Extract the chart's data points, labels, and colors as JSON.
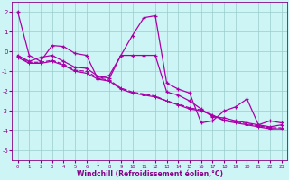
{
  "xlabel": "Windchill (Refroidissement éolien,°C)",
  "xlim": [
    -0.5,
    23.5
  ],
  "ylim": [
    -5.5,
    2.5
  ],
  "yticks": [
    -5,
    -4,
    -3,
    -2,
    -1,
    0,
    1,
    2
  ],
  "xticks": [
    0,
    1,
    2,
    3,
    4,
    5,
    6,
    7,
    8,
    9,
    10,
    11,
    12,
    13,
    14,
    15,
    16,
    17,
    18,
    19,
    20,
    21,
    22,
    23
  ],
  "bg_color": "#cef5f5",
  "line_color": "#aa00aa",
  "grid_color": "#99cccc",
  "line1_x": [
    0,
    1,
    2,
    3,
    4,
    5,
    6,
    7,
    8,
    9,
    10,
    11,
    12,
    13,
    14,
    15,
    16,
    17,
    18,
    19,
    20,
    21,
    22,
    23
  ],
  "line1_y": [
    2.0,
    -0.2,
    -0.5,
    0.3,
    0.25,
    -0.1,
    -0.2,
    -1.4,
    -1.2,
    -0.2,
    0.8,
    1.7,
    1.8,
    -1.6,
    -1.9,
    -2.1,
    -3.6,
    -3.5,
    -3.0,
    -2.8,
    -2.4,
    -3.7,
    -3.5,
    -3.6
  ],
  "line2_x": [
    0,
    1,
    2,
    3,
    4,
    5,
    6,
    7,
    8,
    9,
    10,
    11,
    12,
    13,
    14,
    15,
    16,
    17,
    18,
    19,
    20,
    21,
    22,
    23
  ],
  "line2_y": [
    -0.2,
    -0.5,
    -0.3,
    -0.2,
    -0.5,
    -0.8,
    -0.85,
    -1.25,
    -1.35,
    -0.2,
    -0.2,
    -0.2,
    -0.2,
    -2.05,
    -2.2,
    -2.5,
    -2.9,
    -3.3,
    -3.35,
    -3.5,
    -3.6,
    -3.7,
    -3.8,
    -3.7
  ],
  "line3_x": [
    0,
    1,
    2,
    3,
    4,
    5,
    6,
    7,
    8,
    9,
    10,
    11,
    12,
    13,
    14,
    15,
    16,
    17,
    18,
    19,
    20,
    21,
    22,
    23
  ],
  "line3_y": [
    -0.3,
    -0.6,
    -0.6,
    -0.5,
    -0.7,
    -1.0,
    -1.1,
    -1.4,
    -1.5,
    -1.9,
    -2.1,
    -2.2,
    -2.3,
    -2.5,
    -2.7,
    -2.9,
    -3.0,
    -3.2,
    -3.5,
    -3.6,
    -3.7,
    -3.8,
    -3.9,
    -3.9
  ],
  "line4_x": [
    0,
    1,
    2,
    3,
    4,
    5,
    6,
    7,
    8,
    9,
    10,
    11,
    12,
    13,
    14,
    15,
    16,
    17,
    18,
    19,
    20,
    21,
    22,
    23
  ],
  "line4_y": [
    -0.25,
    -0.55,
    -0.55,
    -0.45,
    -0.65,
    -0.95,
    -1.0,
    -1.35,
    -1.45,
    -1.85,
    -2.05,
    -2.15,
    -2.25,
    -2.5,
    -2.65,
    -2.85,
    -2.95,
    -3.25,
    -3.45,
    -3.55,
    -3.65,
    -3.75,
    -3.85,
    -3.85
  ]
}
